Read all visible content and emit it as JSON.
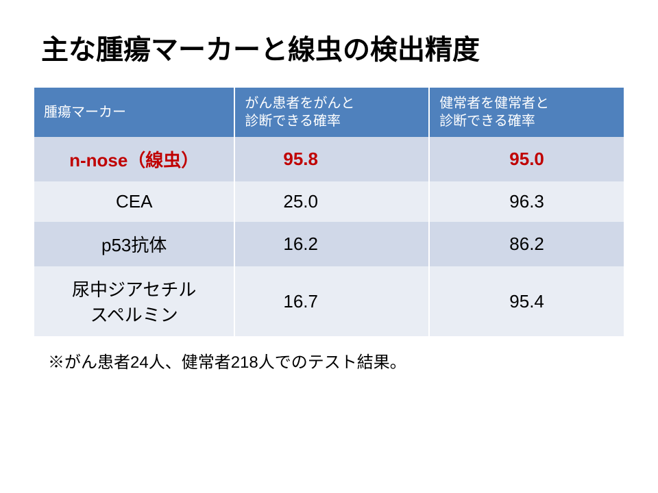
{
  "title": "主な腫瘍マーカーと線虫の検出精度",
  "table": {
    "columns": [
      "腫瘍マーカー",
      "がん患者をがんと\n診断できる確率",
      "健常者を健常者と\n診断できる確率"
    ],
    "rows": [
      {
        "marker": "n-nose（線虫）",
        "sensitivity": "95.8",
        "specificity": "95.0",
        "highlight": true
      },
      {
        "marker": "CEA",
        "sensitivity": "25.0",
        "specificity": "96.3",
        "highlight": false
      },
      {
        "marker": "p53抗体",
        "sensitivity": "16.2",
        "specificity": "86.2",
        "highlight": false
      },
      {
        "marker": "尿中ジアセチル\nスペルミン",
        "sensitivity": "16.7",
        "specificity": "95.4",
        "highlight": false
      }
    ],
    "header_bg": "#4f81bd",
    "header_fg": "#ffffff",
    "row_odd_bg": "#d0d8e8",
    "row_even_bg": "#e9edf4",
    "highlight_color": "#c00000",
    "col_widths": [
      "34%",
      "33%",
      "33%"
    ]
  },
  "footnote": "※がん患者24人、健常者218人でのテスト結果。"
}
